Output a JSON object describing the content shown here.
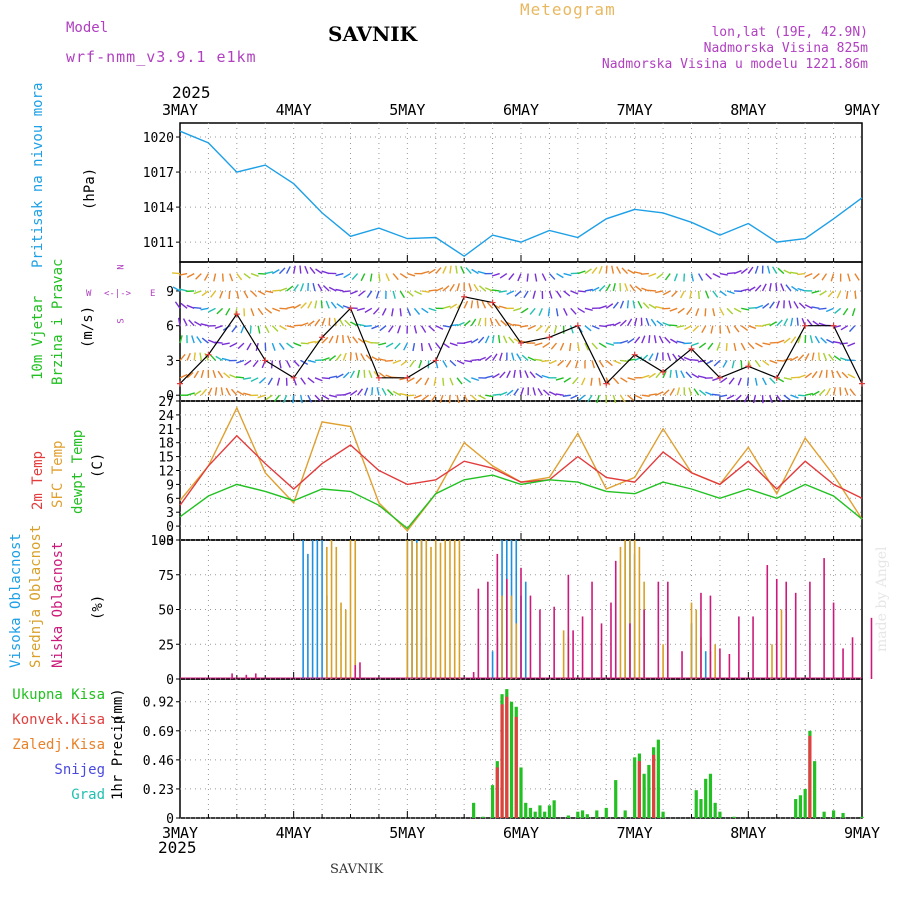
{
  "header": {
    "model_label": "Model",
    "model_name": "wrf-nmm_v3.9.1 e1km",
    "title": "SAVNIK",
    "meteogram_label": "Meteogram",
    "location": "lon,lat (19E, 42.9N)",
    "elevation": "Nadmorska Visina 825m",
    "model_elevation": "Nadmorska Visina u modelu 1221.86m",
    "footer_title": "SAVNIK",
    "credit": "made by Angel"
  },
  "colors": {
    "pressure": "#1ea0e6",
    "temp2m": "#e23c3c",
    "sfc": "#e0a030",
    "dewpt": "#22c022",
    "high_cloud": "#1e90e0",
    "mid_cloud": "#d8a028",
    "low_cloud": "#cc1a7a",
    "total_precip": "#22c022",
    "conv_precip": "#e04040",
    "frz_precip": "#e8822a",
    "snow": "#4a4ae0",
    "hail": "#22c0b0",
    "purple": "#b040c0"
  },
  "timeline": {
    "year": "2025",
    "days": [
      "3MAY",
      "4MAY",
      "5MAY",
      "6MAY",
      "7MAY",
      "8MAY",
      "9MAY"
    ]
  },
  "wind_compass": {
    "n": "N",
    "s": "S",
    "e": "E",
    "w": "W"
  },
  "chart_data": [
    {
      "type": "line",
      "panel": "pressure",
      "ylabel_name": "Pritisak na nivou mora",
      "ylabel_unit": "(hPa)",
      "yticks": [
        "1011",
        "1014",
        "1017",
        "1020"
      ],
      "ylim": [
        1009.3,
        1021.2
      ],
      "x_hours": [
        0,
        6,
        12,
        18,
        24,
        30,
        36,
        42,
        48,
        54,
        60,
        66,
        72,
        78,
        84,
        90,
        96,
        102,
        108,
        114,
        120,
        126,
        132,
        138,
        144
      ],
      "values": [
        1020.5,
        1019.5,
        1017.0,
        1017.6,
        1016.0,
        1013.5,
        1011.5,
        1012.2,
        1011.3,
        1011.4,
        1009.8,
        1011.6,
        1011.0,
        1012.0,
        1011.4,
        1013.0,
        1013.8,
        1013.5,
        1012.7,
        1011.6,
        1012.6,
        1011.0,
        1011.3,
        1013.0,
        1014.8
      ],
      "series_name": ""
    },
    {
      "type": "line",
      "panel": "wind",
      "ylabel_name": "10m Vjetar Brzina i Pravac",
      "ylabel_unit": "(m/s)",
      "yticks": [
        "0",
        "3",
        "6",
        "9"
      ],
      "ylim": [
        -0.5,
        11.5
      ],
      "x_hours": [
        0,
        6,
        12,
        18,
        24,
        30,
        36,
        42,
        48,
        54,
        60,
        66,
        72,
        78,
        84,
        90,
        96,
        102,
        108,
        114,
        120,
        126,
        132,
        138,
        144
      ],
      "values": [
        1.0,
        3.5,
        7.0,
        3.0,
        1.5,
        5.0,
        7.5,
        1.5,
        1.5,
        3.0,
        8.5,
        8.0,
        4.5,
        5.0,
        6.0,
        1.0,
        3.5,
        2.0,
        4.0,
        1.5,
        2.5,
        1.5,
        6.0,
        6.0,
        1.0
      ]
    },
    {
      "type": "line",
      "panel": "temperature",
      "ylabel_lines": [
        "2m Temp",
        "SFC Temp",
        "dewpt Temp"
      ],
      "ylabel_unit": "(C)",
      "yticks": [
        "-3",
        "0",
        "3",
        "6",
        "9",
        "12",
        "15",
        "18",
        "21",
        "24",
        "27"
      ],
      "ylim": [
        -3,
        27
      ],
      "x_hours": [
        0,
        6,
        12,
        18,
        24,
        30,
        36,
        42,
        48,
        54,
        60,
        66,
        72,
        78,
        84,
        90,
        96,
        102,
        108,
        114,
        120,
        126,
        132,
        138,
        144
      ],
      "series": [
        {
          "key": "sfc",
          "values": [
            5.5,
            13.0,
            25.5,
            11.5,
            5.0,
            22.5,
            21.5,
            5.0,
            -1.0,
            7.0,
            18.0,
            13.0,
            9.5,
            10.5,
            20.0,
            8.0,
            10.5,
            21.0,
            11.5,
            9.0,
            17.0,
            7.0,
            19.0,
            11.0,
            1.5
          ]
        },
        {
          "key": "temp2m",
          "values": [
            4.5,
            13.0,
            19.5,
            13.5,
            8.0,
            13.5,
            17.5,
            12.0,
            9.0,
            10.0,
            14.0,
            12.5,
            9.5,
            10.0,
            15.0,
            10.5,
            9.5,
            16.0,
            11.5,
            9.0,
            14.0,
            8.0,
            14.0,
            9.0,
            6.0
          ]
        },
        {
          "key": "dewpt",
          "values": [
            2.0,
            6.5,
            9.0,
            7.5,
            5.5,
            8.0,
            7.5,
            4.5,
            -0.5,
            7.0,
            10.0,
            11.0,
            9.0,
            10.0,
            9.5,
            7.5,
            7.0,
            9.5,
            8.0,
            6.0,
            8.0,
            6.0,
            9.0,
            6.5,
            1.5
          ]
        }
      ]
    },
    {
      "type": "bar",
      "panel": "clouds",
      "ylabel_lines": [
        "Visoka Oblacnost",
        "Srednja Oblacnost",
        "Niska Oblacnost"
      ],
      "ylabel_unit": "(%)",
      "yticks": [
        "0",
        "25",
        "50",
        "75",
        "100"
      ],
      "ylim": [
        0,
        100
      ],
      "series": [
        {
          "key": "high_cloud",
          "bars": [
            [
              26,
              100
            ],
            [
              27,
              90
            ],
            [
              28,
              100
            ],
            [
              29,
              100
            ],
            [
              30,
              100
            ],
            [
              31,
              60
            ],
            [
              48,
              100
            ],
            [
              49,
              100
            ],
            [
              50,
              100
            ],
            [
              51,
              100
            ],
            [
              52,
              30
            ],
            [
              66,
              20
            ],
            [
              67,
              30
            ],
            [
              68,
              100
            ],
            [
              69,
              100
            ],
            [
              70,
              100
            ],
            [
              71,
              100
            ],
            [
              72,
              60
            ],
            [
              73,
              70
            ],
            [
              94,
              100
            ],
            [
              95,
              100
            ],
            [
              96,
              90
            ],
            [
              108,
              40
            ],
            [
              111,
              20
            ]
          ]
        },
        {
          "key": "mid_cloud",
          "bars": [
            [
              31,
              95
            ],
            [
              32,
              100
            ],
            [
              33,
              95
            ],
            [
              34,
              55
            ],
            [
              35,
              50
            ],
            [
              36,
              100
            ],
            [
              37,
              100
            ],
            [
              48,
              100
            ],
            [
              49,
              100
            ],
            [
              50,
              98
            ],
            [
              51,
              100
            ],
            [
              52,
              100
            ],
            [
              53,
              95
            ],
            [
              54,
              100
            ],
            [
              55,
              98
            ],
            [
              56,
              100
            ],
            [
              57,
              100
            ],
            [
              58,
              100
            ],
            [
              59,
              100
            ],
            [
              67,
              35
            ],
            [
              68,
              60
            ],
            [
              69,
              70
            ],
            [
              70,
              60
            ],
            [
              71,
              40
            ],
            [
              81,
              35
            ],
            [
              82,
              30
            ],
            [
              93,
              95
            ],
            [
              94,
              100
            ],
            [
              95,
              100
            ],
            [
              96,
              100
            ],
            [
              97,
              95
            ],
            [
              98,
              70
            ],
            [
              102,
              25
            ],
            [
              108,
              55
            ],
            [
              109,
              50
            ],
            [
              110,
              30
            ],
            [
              112,
              20
            ],
            [
              113,
              25
            ],
            [
              125,
              25
            ],
            [
              126,
              35
            ],
            [
              127,
              50
            ]
          ]
        },
        {
          "key": "low_cloud",
          "bars": [
            [
              11,
              4
            ],
            [
              14,
              3
            ],
            [
              16,
              4
            ],
            [
              37,
              10
            ],
            [
              38,
              12
            ],
            [
              62,
              5
            ],
            [
              63,
              65
            ],
            [
              65,
              70
            ],
            [
              67,
              90
            ],
            [
              69,
              72
            ],
            [
              72,
              80
            ],
            [
              74,
              60
            ],
            [
              76,
              50
            ],
            [
              79,
              52
            ],
            [
              82,
              75
            ],
            [
              83,
              35
            ],
            [
              85,
              45
            ],
            [
              87,
              70
            ],
            [
              89,
              40
            ],
            [
              91,
              55
            ],
            [
              92,
              85
            ],
            [
              95,
              40
            ],
            [
              98,
              50
            ],
            [
              101,
              70
            ],
            [
              103,
              70
            ],
            [
              106,
              20
            ],
            [
              110,
              62
            ],
            [
              112,
              60
            ],
            [
              114,
              22
            ],
            [
              116,
              18
            ],
            [
              118,
              45
            ],
            [
              121,
              45
            ],
            [
              124,
              82
            ],
            [
              126,
              72
            ],
            [
              128,
              70
            ],
            [
              130,
              62
            ],
            [
              133,
              70
            ],
            [
              136,
              87
            ],
            [
              138,
              55
            ],
            [
              140,
              22
            ],
            [
              142,
              30
            ],
            [
              146,
              44
            ]
          ]
        }
      ]
    },
    {
      "type": "bar",
      "panel": "precipitation",
      "legend": [
        "Ukupna Kisa",
        "Konvek.Kisa",
        "Zaledj.Kisa",
        "Snijeg",
        "Grad"
      ],
      "ylabel_name": "1hr Precip",
      "ylabel_unit": "(mm)",
      "yticks": [
        "0",
        "0.23",
        "0.46",
        "0.69",
        "0.92"
      ],
      "ylim": [
        0,
        1.1
      ],
      "series": [
        {
          "key": "total_precip",
          "bars": [
            [
              62,
              0.12
            ],
            [
              64,
              0.01
            ],
            [
              66,
              0.26
            ],
            [
              67,
              0.45
            ],
            [
              68,
              0.98
            ],
            [
              69,
              1.02
            ],
            [
              70,
              0.92
            ],
            [
              71,
              0.88
            ],
            [
              72,
              0.4
            ],
            [
              73,
              0.12
            ],
            [
              74,
              0.08
            ],
            [
              75,
              0.05
            ],
            [
              76,
              0.1
            ],
            [
              77,
              0.05
            ],
            [
              78,
              0.1
            ],
            [
              79,
              0.14
            ],
            [
              82,
              0.02
            ],
            [
              84,
              0.05
            ],
            [
              85,
              0.06
            ],
            [
              86,
              0.03
            ],
            [
              88,
              0.06
            ],
            [
              90,
              0.08
            ],
            [
              92,
              0.3
            ],
            [
              94,
              0.06
            ],
            [
              96,
              0.48
            ],
            [
              97,
              0.51
            ],
            [
              98,
              0.35
            ],
            [
              99,
              0.42
            ],
            [
              100,
              0.56
            ],
            [
              101,
              0.62
            ],
            [
              102,
              0.05
            ],
            [
              109,
              0.22
            ],
            [
              110,
              0.15
            ],
            [
              111,
              0.31
            ],
            [
              112,
              0.35
            ],
            [
              113,
              0.12
            ],
            [
              114,
              0.05
            ],
            [
              117,
              0.01
            ],
            [
              130,
              0.15
            ],
            [
              131,
              0.18
            ],
            [
              132,
              0.23
            ],
            [
              133,
              0.69
            ],
            [
              134,
              0.45
            ],
            [
              136,
              0.05
            ],
            [
              138,
              0.06
            ],
            [
              140,
              0.04
            ],
            [
              144,
              0.01
            ]
          ]
        },
        {
          "key": "conv_precip",
          "bars": [
            [
              67,
              0.4
            ],
            [
              68,
              0.9
            ],
            [
              69,
              0.96
            ],
            [
              71,
              0.8
            ],
            [
              97,
              0.45
            ],
            [
              100,
              0.5
            ],
            [
              133,
              0.65
            ]
          ]
        }
      ]
    }
  ]
}
